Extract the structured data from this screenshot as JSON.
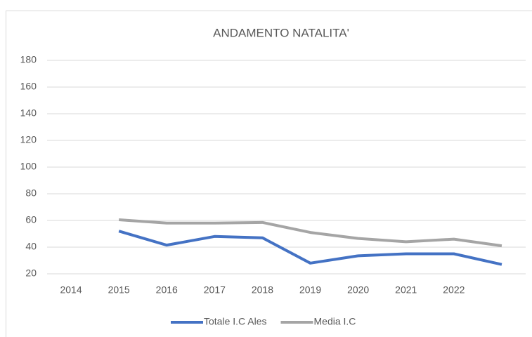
{
  "chart_data": {
    "type": "line",
    "title": "ANDAMENTO NATALITA'",
    "categories": [
      "2014",
      "2015",
      "2016",
      "2017",
      "2018",
      "2019",
      "2020",
      "2021",
      "2022",
      null
    ],
    "series": [
      {
        "name": "Totale I.C Ales",
        "color": "#4472c4",
        "values": [
          null,
          52,
          41.5,
          48,
          47,
          28,
          33.5,
          35,
          35,
          27
        ]
      },
      {
        "name": "Media I.C",
        "color": "#a5a5a5",
        "values": [
          null,
          60.5,
          58,
          58,
          58.5,
          51,
          46.5,
          44,
          46,
          41
        ]
      }
    ],
    "ylim": [
      20,
      180
    ],
    "yticks": [
      20,
      40,
      60,
      80,
      100,
      120,
      140,
      160,
      180
    ],
    "grid": true,
    "legend": "bottom"
  }
}
